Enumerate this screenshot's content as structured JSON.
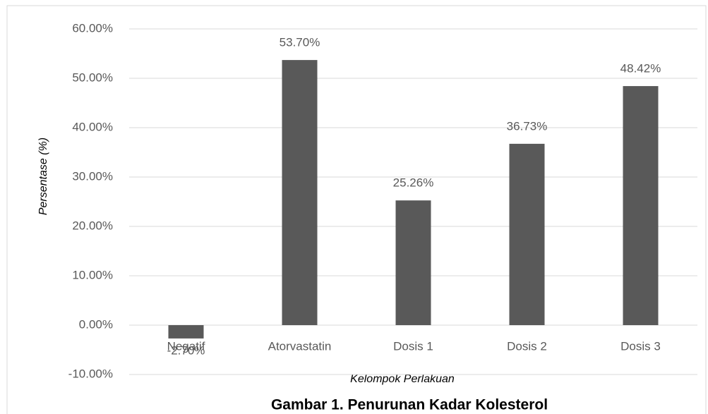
{
  "chart_data": {
    "type": "bar",
    "title": "Gambar 1.  Penurunan Kadar Kolesterol",
    "x_label": "Kelompok Perlakuan",
    "y_label": "Persentase (%)",
    "categories": [
      "Negatif",
      "Atorvastatin",
      "Dosis 1",
      "Dosis 2",
      "Dosis 3"
    ],
    "values": [
      -2.7,
      53.7,
      25.26,
      36.73,
      48.42
    ],
    "value_labels": [
      "-2.70%",
      "53.70%",
      "25.26%",
      "36.73%",
      "48.42%"
    ],
    "color": "#595959",
    "ylim": [
      -10,
      60
    ],
    "yticks": [
      {
        "value": -10,
        "label": "-10.00%"
      },
      {
        "value": 0,
        "label": "0.00%"
      },
      {
        "value": 10,
        "label": "10.00%"
      },
      {
        "value": 20,
        "label": "20.00%"
      },
      {
        "value": 30,
        "label": "30.00%"
      },
      {
        "value": 40,
        "label": "40.00%"
      },
      {
        "value": 50,
        "label": "50.00%"
      },
      {
        "value": 60,
        "label": "60.00%"
      }
    ],
    "grid": true
  }
}
